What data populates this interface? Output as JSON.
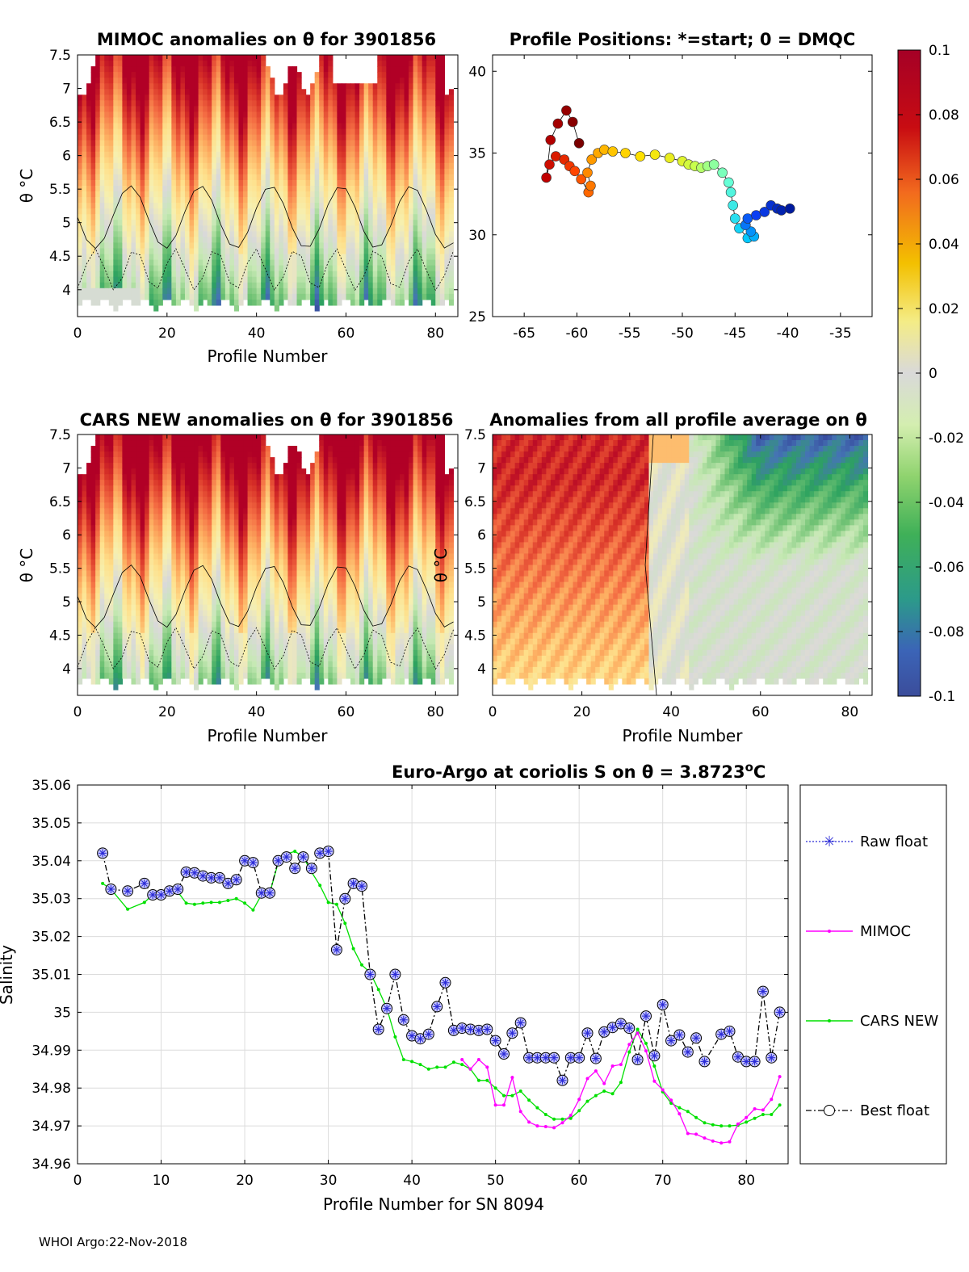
{
  "footer": "WHOI Argo:22-Nov-2018",
  "palette": {
    "scale": [
      "#313695",
      "#4575b4",
      "#2ca25f",
      "#74c476",
      "#c7e9b4",
      "#d9d9d9",
      "#f6f0b0",
      "#fee08b",
      "#fdae61",
      "#f46d43",
      "#d73027",
      "#b10026"
    ],
    "dot_scale": [
      "#001b9e",
      "#0b3ff2",
      "#00c8ff",
      "#66ffd6",
      "#c8ff4d",
      "#ffe100",
      "#ff9a00",
      "#ff4500",
      "#c00000",
      "#7a0000"
    ]
  },
  "chart_data": [
    {
      "id": "mimoc",
      "type": "heatmap",
      "title": "MIMOC anomalies on θ  for 3901856",
      "xlabel": "Profile Number",
      "ylabel": "θ °C",
      "xlim": [
        0,
        85
      ],
      "ylim": [
        3.6,
        7.5
      ],
      "xticks": [
        "0",
        "20",
        "40",
        "60",
        "80"
      ],
      "yticks": [
        "4",
        "4.5",
        "5",
        "5.5",
        "6",
        "6.5",
        "7",
        "7.5"
      ],
      "value_range": [
        -0.1,
        0.1
      ]
    },
    {
      "id": "positions",
      "type": "scatter",
      "title": "Profile Positions: *=start; 0 = DMQC",
      "xlim": [
        -68,
        -32
      ],
      "ylim": [
        25,
        41
      ],
      "xticks": [
        "-65",
        "-60",
        "-55",
        "-50",
        "-45",
        "-40",
        "-35"
      ],
      "yticks": [
        "25",
        "30",
        "35",
        "40"
      ],
      "lon": [
        -39.8,
        -40.6,
        -41.0,
        -41.6,
        -42.2,
        -43.0,
        -43.8,
        -44.0,
        -43.5,
        -43.2,
        -43.8,
        -44.6,
        -45.0,
        -45.2,
        -45.4,
        -45.6,
        -46.2,
        -47.0,
        -47.6,
        -48.2,
        -48.8,
        -49.4,
        -50.0,
        -51.2,
        -52.6,
        -54.0,
        -55.4,
        -56.6,
        -57.4,
        -58.0,
        -58.6,
        -59.0,
        -58.7,
        -58.9,
        -59.6,
        -60.2,
        -60.7,
        -61.2,
        -62.0,
        -62.6,
        -62.9,
        -62.5,
        -61.8,
        -61.0,
        -60.4,
        -59.8
      ],
      "lat": [
        31.6,
        31.5,
        31.6,
        31.8,
        31.4,
        31.2,
        31.0,
        30.6,
        30.2,
        29.9,
        29.8,
        30.4,
        31.0,
        31.8,
        32.6,
        33.2,
        33.8,
        34.3,
        34.2,
        34.1,
        34.2,
        34.3,
        34.5,
        34.7,
        34.9,
        34.8,
        35.0,
        35.1,
        35.2,
        35.0,
        34.6,
        33.8,
        33.0,
        32.6,
        33.4,
        33.9,
        34.2,
        34.6,
        34.8,
        34.3,
        33.5,
        35.8,
        36.8,
        37.6,
        36.9,
        35.6
      ],
      "start_marker": "*"
    },
    {
      "id": "cars",
      "type": "heatmap",
      "title": "CARS NEW anomalies on θ for 3901856",
      "xlabel": "Profile Number",
      "ylabel": "θ °C",
      "xlim": [
        0,
        85
      ],
      "ylim": [
        3.6,
        7.5
      ],
      "xticks": [
        "0",
        "20",
        "40",
        "60",
        "80"
      ],
      "yticks": [
        "4",
        "4.5",
        "5",
        "5.5",
        "6",
        "6.5",
        "7",
        "7.5"
      ]
    },
    {
      "id": "allavg",
      "type": "heatmap",
      "title": "Anomalies from all profile average on θ",
      "xlabel": "Profile Number",
      "ylabel": "θ °C",
      "xlim": [
        0,
        85
      ],
      "ylim": [
        3.6,
        7.5
      ],
      "xticks": [
        "0",
        "20",
        "40",
        "60",
        "80"
      ],
      "yticks": [
        "4",
        "4.5",
        "5",
        "5.5",
        "6",
        "6.5",
        "7",
        "7.5"
      ]
    },
    {
      "id": "colorbar",
      "type": "heatmap",
      "ticks": [
        "0.1",
        "0.08",
        "0.06",
        "0.04",
        "0.02",
        "0",
        "-0.02",
        "-0.04",
        "-0.06",
        "-0.08",
        "-0.1"
      ]
    },
    {
      "id": "salinity",
      "type": "line",
      "title": "Euro-Argo at coriolis S on θ = 3.8723",
      "title_sup": "o",
      "title_unit": "C",
      "xlabel": "Profile Number for SN 8094",
      "ylabel": "Salinity",
      "xlim": [
        0,
        85
      ],
      "ylim": [
        34.96,
        35.06
      ],
      "xticks": [
        "0",
        "10",
        "20",
        "30",
        "40",
        "50",
        "60",
        "70",
        "80"
      ],
      "yticks": [
        "34.96",
        "34.97",
        "34.98",
        "34.99",
        "35",
        "35.01",
        "35.02",
        "35.03",
        "35.04",
        "35.05",
        "35.06"
      ],
      "legend_position": "right",
      "legend": [
        "Raw float",
        "MIMOC",
        "CARS NEW",
        "Best float"
      ],
      "series": [
        {
          "name": "Best float",
          "x": [
            3,
            4,
            6,
            8,
            9,
            10,
            11,
            12,
            13,
            14,
            15,
            16,
            17,
            18,
            19,
            20,
            21,
            22,
            23,
            24,
            25,
            26,
            27,
            28,
            29,
            30,
            31,
            32,
            33,
            34,
            35,
            36,
            37,
            38,
            39,
            40,
            41,
            42,
            43,
            44,
            45,
            46,
            47,
            48,
            49,
            50,
            51,
            52,
            53,
            54,
            55,
            56,
            57,
            58,
            59,
            60,
            61,
            62,
            63,
            64,
            65,
            66,
            67,
            68,
            69,
            70,
            71,
            72,
            73,
            74,
            75,
            77,
            78,
            79,
            80,
            81,
            82,
            83,
            84
          ],
          "y": [
            35.042,
            35.0325,
            35.032,
            35.034,
            35.031,
            35.031,
            35.032,
            35.0325,
            35.037,
            35.0368,
            35.036,
            35.0355,
            35.0355,
            35.034,
            35.035,
            35.04,
            35.0395,
            35.0315,
            35.0315,
            35.04,
            35.041,
            35.038,
            35.041,
            35.038,
            35.042,
            35.0425,
            35.0165,
            35.03,
            35.034,
            35.0333,
            35.01,
            34.9955,
            35.001,
            35.01,
            34.998,
            34.9938,
            34.993,
            34.9942,
            35.0015,
            35.0078,
            34.9952,
            34.9958,
            34.9955,
            34.9952,
            34.9955,
            34.9925,
            34.989,
            34.9945,
            34.9972,
            34.988,
            34.988,
            34.988,
            34.988,
            34.982,
            34.988,
            34.988,
            34.9945,
            34.9878,
            34.9948,
            34.996,
            34.997,
            34.9958,
            34.9875,
            34.999,
            34.9885,
            35.002,
            34.9925,
            34.994,
            34.9895,
            34.9932,
            34.987,
            34.9942,
            34.995,
            34.9882,
            34.987,
            34.987,
            35.0055,
            34.988,
            35.0
          ]
        },
        {
          "name": "CARS NEW",
          "x": [
            3,
            4,
            6,
            8,
            9,
            10,
            11,
            12,
            13,
            14,
            15,
            16,
            17,
            18,
            19,
            20,
            21,
            22,
            23,
            24,
            25,
            26,
            27,
            28,
            29,
            30,
            31,
            32,
            33,
            34,
            35,
            36,
            37,
            38,
            39,
            40,
            41,
            42,
            43,
            44,
            45,
            46,
            47,
            48,
            49,
            50,
            51,
            52,
            53,
            54,
            55,
            56,
            57,
            58,
            59,
            60,
            61,
            62,
            63,
            64,
            65,
            66,
            67,
            68,
            69,
            70,
            71,
            72,
            73,
            74,
            75,
            76,
            77,
            78,
            79,
            80,
            81,
            82,
            83,
            84
          ],
          "y": [
            35.034,
            35.0325,
            35.0272,
            35.029,
            35.031,
            35.031,
            35.0312,
            35.0318,
            35.0288,
            35.0285,
            35.0288,
            35.029,
            35.029,
            35.0295,
            35.03,
            35.0288,
            35.027,
            35.031,
            35.0315,
            35.0395,
            35.0418,
            35.0425,
            35.041,
            35.037,
            35.0335,
            35.029,
            35.0285,
            35.0235,
            35.0168,
            35.0125,
            35.0105,
            35.006,
            35.001,
            34.9935,
            34.9875,
            34.987,
            34.9862,
            34.985,
            34.9855,
            34.9855,
            34.9868,
            34.9862,
            34.985,
            34.982,
            34.982,
            34.98,
            34.978,
            34.978,
            34.9792,
            34.9768,
            34.9748,
            34.973,
            34.9718,
            34.9718,
            34.972,
            34.974,
            34.9765,
            34.978,
            34.9792,
            34.9785,
            34.9815,
            34.9895,
            34.9955,
            34.9918,
            34.9858,
            34.979,
            34.976,
            34.9748,
            34.9738,
            34.9722,
            34.9708,
            34.9703,
            34.97,
            34.97,
            34.9702,
            34.971,
            34.972,
            34.973,
            34.973,
            34.9755
          ]
        },
        {
          "name": "MIMOC",
          "x": [
            46,
            47,
            48,
            49,
            50,
            51,
            52,
            53,
            54,
            55,
            56,
            57,
            58,
            59,
            60,
            61,
            62,
            63,
            64,
            65,
            66,
            67,
            68,
            69,
            70,
            71,
            72,
            73,
            74,
            75,
            76,
            77,
            78,
            79,
            80,
            81,
            82,
            83,
            84
          ],
          "y": [
            34.9875,
            34.985,
            34.9875,
            34.9855,
            34.9755,
            34.9755,
            34.9828,
            34.9738,
            34.971,
            34.97,
            34.9698,
            34.9695,
            34.9708,
            34.9728,
            34.977,
            34.9825,
            34.9845,
            34.9812,
            34.9858,
            34.9862,
            34.9915,
            34.9945,
            34.9898,
            34.9818,
            34.9795,
            34.9768,
            34.9732,
            34.968,
            34.9678,
            34.9668,
            34.966,
            34.9655,
            34.9658,
            34.9705,
            34.9722,
            34.9745,
            34.9742,
            34.977,
            34.983
          ]
        },
        {
          "name": "Raw float",
          "x": [
            3,
            4,
            6,
            8,
            9,
            10,
            11,
            12,
            13,
            14,
            15,
            16,
            17,
            18,
            19,
            20,
            21,
            22,
            23,
            24,
            25,
            26,
            27,
            28,
            29,
            30,
            31,
            32,
            33,
            34,
            35,
            36,
            37,
            38,
            39,
            40,
            41,
            42,
            43,
            44,
            45,
            46,
            47,
            48,
            49,
            50,
            51,
            52,
            53,
            54,
            55,
            56,
            57,
            58,
            59,
            60,
            61,
            62,
            63,
            64,
            65,
            66,
            67,
            68,
            69,
            70,
            71,
            72,
            73,
            74,
            75,
            77,
            78,
            79,
            80,
            81,
            82,
            83,
            84
          ],
          "y": [
            35.042,
            35.0325,
            35.032,
            35.034,
            35.031,
            35.031,
            35.032,
            35.0325,
            35.037,
            35.0368,
            35.036,
            35.0355,
            35.0355,
            35.034,
            35.035,
            35.04,
            35.0395,
            35.0315,
            35.0315,
            35.04,
            35.041,
            35.038,
            35.041,
            35.038,
            35.042,
            35.0425,
            35.0165,
            35.03,
            35.034,
            35.0333,
            35.01,
            34.9955,
            35.001,
            35.01,
            34.998,
            34.9938,
            34.993,
            34.9942,
            35.0015,
            35.0078,
            34.9952,
            34.9958,
            34.9955,
            34.9952,
            34.9955,
            34.9925,
            34.989,
            34.9945,
            34.9972,
            34.988,
            34.988,
            34.988,
            34.988,
            34.982,
            34.988,
            34.988,
            34.9945,
            34.9878,
            34.9948,
            34.996,
            34.997,
            34.9958,
            34.9875,
            34.999,
            34.9885,
            35.002,
            34.9925,
            34.994,
            34.9895,
            34.9932,
            34.987,
            34.9942,
            34.995,
            34.9882,
            34.987,
            34.987,
            35.0055,
            34.988,
            35.0
          ]
        }
      ]
    }
  ]
}
